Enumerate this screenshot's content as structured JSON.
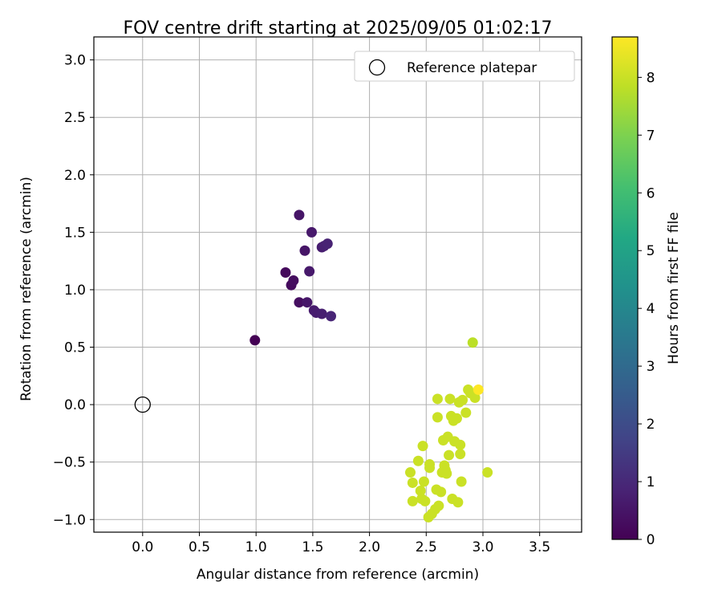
{
  "chart_data": {
    "type": "scatter",
    "title": "FOV centre drift starting at 2025/09/05 01:02:17",
    "xlabel": "Angular distance from reference (arcmin)",
    "ylabel": "Rotation from reference (arcmin)",
    "xlim": [
      -0.43,
      3.87
    ],
    "ylim": [
      -1.11,
      3.2
    ],
    "xticks": [
      0.0,
      0.5,
      1.0,
      1.5,
      2.0,
      2.5,
      3.0,
      3.5
    ],
    "xtick_labels": [
      "0.0",
      "0.5",
      "1.0",
      "1.5",
      "2.0",
      "2.5",
      "3.0",
      "3.5"
    ],
    "yticks": [
      -1.0,
      -0.5,
      0.0,
      0.5,
      1.0,
      1.5,
      2.0,
      2.5,
      3.0
    ],
    "ytick_labels": [
      "−1.0",
      "−0.5",
      "0.0",
      "0.5",
      "1.0",
      "1.5",
      "2.0",
      "2.5",
      "3.0"
    ],
    "grid": true,
    "legend": {
      "position": "upper right",
      "entries": [
        "Reference platepar"
      ]
    },
    "reference_point": {
      "label": "Reference platepar",
      "x": 0.0,
      "y": 0.0,
      "marker": "open-circle"
    },
    "colorbar": {
      "label": "Hours from first FF file",
      "colormap": "viridis",
      "range": [
        0,
        8.7
      ],
      "ticks": [
        0,
        1,
        2,
        3,
        4,
        5,
        6,
        7,
        8
      ],
      "tick_labels": [
        "0",
        "1",
        "2",
        "3",
        "4",
        "5",
        "6",
        "7",
        "8"
      ]
    },
    "series": [
      {
        "color_value_hours_approx": 0.5,
        "points": [
          {
            "x": 0.99,
            "y": 0.56,
            "t": 0.0
          },
          {
            "x": 1.26,
            "y": 1.15,
            "t": 0.2
          },
          {
            "x": 1.31,
            "y": 1.04,
            "t": 0.25
          },
          {
            "x": 1.33,
            "y": 1.08,
            "t": 0.3
          },
          {
            "x": 1.38,
            "y": 0.89,
            "t": 0.35
          },
          {
            "x": 1.38,
            "y": 1.65,
            "t": 0.5
          },
          {
            "x": 1.43,
            "y": 1.34,
            "t": 0.5
          },
          {
            "x": 1.45,
            "y": 0.89,
            "t": 0.55
          },
          {
            "x": 1.47,
            "y": 1.16,
            "t": 0.6
          },
          {
            "x": 1.49,
            "y": 1.5,
            "t": 0.6
          },
          {
            "x": 1.51,
            "y": 0.82,
            "t": 0.65
          },
          {
            "x": 1.53,
            "y": 0.8,
            "t": 0.7
          },
          {
            "x": 1.58,
            "y": 1.37,
            "t": 0.7
          },
          {
            "x": 1.58,
            "y": 0.79,
            "t": 0.75
          },
          {
            "x": 1.6,
            "y": 1.38,
            "t": 0.8
          },
          {
            "x": 1.63,
            "y": 1.4,
            "t": 0.85
          },
          {
            "x": 1.66,
            "y": 0.77,
            "t": 0.9
          }
        ]
      },
      {
        "color_value_hours_approx": 8.0,
        "points": [
          {
            "x": 2.36,
            "y": -0.59,
            "t": 8.0
          },
          {
            "x": 2.38,
            "y": -0.68,
            "t": 8.0
          },
          {
            "x": 2.38,
            "y": -0.84,
            "t": 8.0
          },
          {
            "x": 2.43,
            "y": -0.49,
            "t": 8.0
          },
          {
            "x": 2.45,
            "y": -0.75,
            "t": 8.0
          },
          {
            "x": 2.46,
            "y": -0.82,
            "t": 8.0
          },
          {
            "x": 2.47,
            "y": -0.36,
            "t": 8.0
          },
          {
            "x": 2.48,
            "y": -0.67,
            "t": 8.0
          },
          {
            "x": 2.49,
            "y": -0.84,
            "t": 8.0
          },
          {
            "x": 2.52,
            "y": -0.98,
            "t": 8.0
          },
          {
            "x": 2.53,
            "y": -0.52,
            "t": 8.0
          },
          {
            "x": 2.53,
            "y": -0.55,
            "t": 8.0
          },
          {
            "x": 2.55,
            "y": -0.95,
            "t": 8.0
          },
          {
            "x": 2.58,
            "y": -0.91,
            "t": 8.0
          },
          {
            "x": 2.59,
            "y": -0.74,
            "t": 8.0
          },
          {
            "x": 2.6,
            "y": 0.05,
            "t": 8.0
          },
          {
            "x": 2.6,
            "y": -0.11,
            "t": 8.0
          },
          {
            "x": 2.61,
            "y": -0.88,
            "t": 8.0
          },
          {
            "x": 2.63,
            "y": -0.76,
            "t": 8.0
          },
          {
            "x": 2.64,
            "y": -0.59,
            "t": 8.0
          },
          {
            "x": 2.65,
            "y": -0.31,
            "t": 8.0
          },
          {
            "x": 2.66,
            "y": -0.53,
            "t": 8.0
          },
          {
            "x": 2.67,
            "y": -0.57,
            "t": 8.0
          },
          {
            "x": 2.68,
            "y": -0.6,
            "t": 8.0
          },
          {
            "x": 2.69,
            "y": -0.28,
            "t": 8.0
          },
          {
            "x": 2.7,
            "y": -0.44,
            "t": 8.0
          },
          {
            "x": 2.71,
            "y": 0.05,
            "t": 8.0
          },
          {
            "x": 2.72,
            "y": -0.1,
            "t": 8.0
          },
          {
            "x": 2.73,
            "y": -0.82,
            "t": 8.0
          },
          {
            "x": 2.74,
            "y": -0.14,
            "t": 8.0
          },
          {
            "x": 2.75,
            "y": -0.32,
            "t": 8.0
          },
          {
            "x": 2.77,
            "y": -0.12,
            "t": 8.0
          },
          {
            "x": 2.78,
            "y": -0.85,
            "t": 8.0
          },
          {
            "x": 2.79,
            "y": 0.02,
            "t": 8.0
          },
          {
            "x": 2.8,
            "y": -0.35,
            "t": 8.0
          },
          {
            "x": 2.8,
            "y": -0.43,
            "t": 8.0
          },
          {
            "x": 2.81,
            "y": -0.67,
            "t": 8.0
          },
          {
            "x": 2.82,
            "y": 0.04,
            "t": 8.0
          },
          {
            "x": 2.85,
            "y": -0.07,
            "t": 8.0
          },
          {
            "x": 2.87,
            "y": 0.13,
            "t": 8.0
          },
          {
            "x": 2.89,
            "y": 0.1,
            "t": 8.0
          },
          {
            "x": 2.91,
            "y": 0.54,
            "t": 7.8
          },
          {
            "x": 2.93,
            "y": 0.06,
            "t": 8.0
          },
          {
            "x": 2.96,
            "y": 0.13,
            "t": 8.7
          },
          {
            "x": 3.04,
            "y": -0.59,
            "t": 8.0
          }
        ]
      }
    ]
  }
}
